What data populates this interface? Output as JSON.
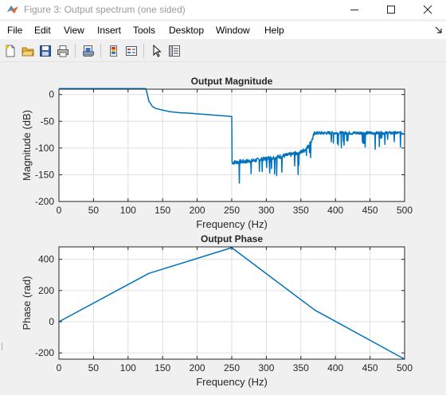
{
  "window": {
    "title": "Figure 3: Output spectrum (one sided)"
  },
  "menu": [
    "File",
    "Edit",
    "View",
    "Insert",
    "Tools",
    "Desktop",
    "Window",
    "Help"
  ],
  "toolbar": {
    "buttons": [
      "new-figure",
      "open-file",
      "save",
      "print",
      "print-preview",
      "colorbar",
      "legend",
      "edit-plot",
      "property-inspector"
    ]
  },
  "colors": {
    "series": "#0072bd",
    "axes": "#262626",
    "grid": "#dfdfdf"
  },
  "chart_data": [
    {
      "type": "line",
      "title": "Output Magnitude",
      "xlabel": "Frequency (Hz)",
      "ylabel": "Magnitude (dB)",
      "xlim": [
        0,
        500
      ],
      "ylim": [
        -200,
        10
      ],
      "xticks": [
        0,
        50,
        100,
        150,
        200,
        250,
        300,
        350,
        400,
        450,
        500
      ],
      "xtick_labels": [
        "0",
        "50",
        "100",
        "150",
        "200",
        "250",
        "300",
        "350",
        "400",
        "450",
        "500"
      ],
      "yticks": [
        0,
        -50,
        -100,
        -150,
        -200
      ],
      "ytick_labels": [
        "0",
        "-50",
        "-100",
        "-150",
        "-200"
      ],
      "grid": true,
      "series": [
        {
          "x": [
            0,
            125,
            126,
            128,
            130,
            135,
            140,
            150,
            160,
            175,
            190,
            210,
            230,
            249,
            250,
            251,
            260,
            280,
            300,
            320,
            340,
            350,
            355,
            360,
            365,
            370,
            375,
            400,
            450,
            500
          ],
          "values": [
            11,
            11,
            10,
            0,
            -12,
            -22,
            -26,
            -29,
            -32,
            -34,
            -35,
            -37,
            -39,
            -41,
            -128,
            -127,
            -126,
            -124,
            -120,
            -116,
            -111,
            -108,
            -104,
            -98,
            -88,
            -72,
            -72,
            -72,
            -72,
            -72
          ]
        }
      ]
    },
    {
      "type": "line",
      "title": "Output Phase",
      "xlabel": "Frequency (Hz)",
      "ylabel": "Phase (rad)",
      "xlim": [
        0,
        500
      ],
      "ylim": [
        -240,
        480
      ],
      "xticks": [
        0,
        50,
        100,
        150,
        200,
        250,
        300,
        350,
        400,
        450,
        500
      ],
      "xtick_labels": [
        "0",
        "50",
        "100",
        "150",
        "200",
        "250",
        "300",
        "350",
        "400",
        "450",
        "500"
      ],
      "yticks": [
        400,
        200,
        0,
        -200
      ],
      "ytick_labels": [
        "400",
        "200",
        "0",
        "-200"
      ],
      "grid": true,
      "series": [
        {
          "x": [
            0,
            130,
            250,
            370,
            500
          ],
          "values": [
            0,
            310,
            475,
            75,
            -240
          ]
        }
      ]
    }
  ]
}
